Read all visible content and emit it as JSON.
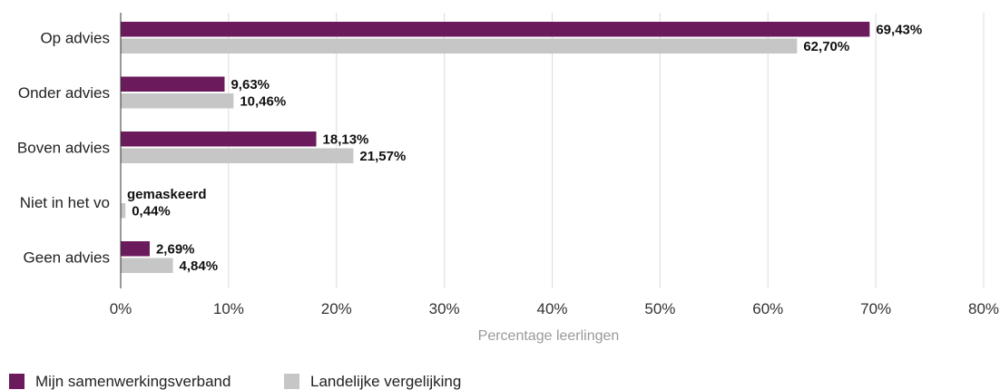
{
  "chart_data": {
    "type": "bar",
    "orientation": "horizontal",
    "categories": [
      "Op advies",
      "Onder advies",
      "Boven advies",
      "Niet in het vo",
      "Geen advies"
    ],
    "series": [
      {
        "name": "Mijn samenwerkingsverband",
        "color": "#6b1a5c",
        "values": [
          69.43,
          9.63,
          18.13,
          null,
          2.69
        ],
        "labels": [
          "69,43%",
          "9,63%",
          "18,13%",
          "gemaskeerd",
          "2,69%"
        ]
      },
      {
        "name": "Landelijke vergelijking",
        "color": "#c6c6c6",
        "values": [
          62.7,
          10.46,
          21.57,
          0.44,
          4.84
        ],
        "labels": [
          "62,70%",
          "10,46%",
          "21,57%",
          "0,44%",
          "4,84%"
        ]
      }
    ],
    "xlim": [
      0,
      80
    ],
    "xticks": [
      0,
      10,
      20,
      30,
      40,
      50,
      60,
      70,
      80
    ],
    "xtick_labels": [
      "0%",
      "10%",
      "20%",
      "30%",
      "40%",
      "50%",
      "60%",
      "70%",
      "80%"
    ],
    "xlabel": "Percentage leerlingen",
    "ylabel": "",
    "title": "",
    "grid": true,
    "legend_position": "bottom-left"
  }
}
